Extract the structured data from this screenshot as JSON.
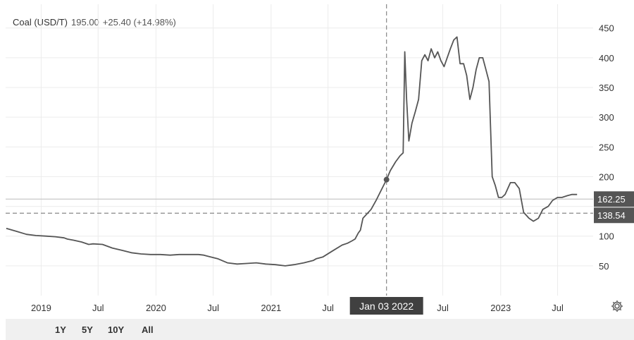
{
  "legend": {
    "name": "Coal (USD/T)",
    "price": "195.00",
    "change": "+25.40 (+14.98%)"
  },
  "range_buttons": [
    "1Y",
    "5Y",
    "10Y",
    "All"
  ],
  "icons": {
    "settings": "gear-icon"
  },
  "colors": {
    "line": "#555555",
    "price_tag": "#555555",
    "crosshair_label": "#404040"
  },
  "chart_data": {
    "type": "line",
    "title": "Coal (USD/T)",
    "ylim": [
      0,
      490
    ],
    "y_ticks": [
      50,
      100,
      150,
      200,
      250,
      300,
      350,
      400,
      450
    ],
    "y_tick_labels": [
      "50",
      "100",
      "",
      "200",
      "250",
      "300",
      "350",
      "400",
      "450"
    ],
    "x_ticks": [
      {
        "date": "2019-01-01",
        "label": "2019"
      },
      {
        "date": "2019-07-01",
        "label": "Jul"
      },
      {
        "date": "2020-01-01",
        "label": "2020"
      },
      {
        "date": "2020-07-01",
        "label": "Jul"
      },
      {
        "date": "2021-01-01",
        "label": "2021"
      },
      {
        "date": "2021-07-01",
        "label": "Jul"
      },
      {
        "date": "2022-07-01",
        "label": "Jul"
      },
      {
        "date": "2023-01-01",
        "label": "2023"
      },
      {
        "date": "2023-07-01",
        "label": "Jul"
      }
    ],
    "grid": true,
    "price_lines": [
      {
        "value": 162.25,
        "label": "162.25",
        "style": "solid"
      },
      {
        "value": 138.54,
        "label": "138.54",
        "style": "dashed"
      }
    ],
    "crosshair": {
      "date": "2022-01-03",
      "value": 195.0,
      "label": "Jan 03 2022"
    },
    "series": [
      {
        "x": [
          "2018-09-12",
          "2018-10-15",
          "2018-11-15",
          "2018-12-15",
          "2019-01-15",
          "2019-02-15",
          "2019-03-15",
          "2019-03-25",
          "2019-04-15",
          "2019-05-10",
          "2019-06-01",
          "2019-06-15",
          "2019-07-15",
          "2019-08-15",
          "2019-09-15",
          "2019-10-15",
          "2019-11-15",
          "2019-12-15",
          "2020-01-15",
          "2020-02-15",
          "2020-03-15",
          "2020-04-15",
          "2020-05-15",
          "2020-06-01",
          "2020-06-15",
          "2020-07-15",
          "2020-08-15",
          "2020-09-15",
          "2020-10-15",
          "2020-11-15",
          "2020-12-15",
          "2021-01-15",
          "2021-02-15",
          "2021-03-15",
          "2021-04-15",
          "2021-05-15",
          "2021-05-25",
          "2021-06-15",
          "2021-07-15",
          "2021-08-15",
          "2021-09-01",
          "2021-09-15",
          "2021-09-25",
          "2021-10-05",
          "2021-10-12",
          "2021-10-20",
          "2021-11-15",
          "2021-12-01",
          "2021-12-15",
          "2022-01-03",
          "2022-01-15",
          "2022-02-01",
          "2022-02-15",
          "2022-02-25",
          "2022-03-02",
          "2022-03-08",
          "2022-03-15",
          "2022-03-25",
          "2022-04-05",
          "2022-04-15",
          "2022-04-25",
          "2022-05-05",
          "2022-05-15",
          "2022-05-25",
          "2022-06-05",
          "2022-06-15",
          "2022-06-25",
          "2022-07-05",
          "2022-07-15",
          "2022-07-25",
          "2022-08-05",
          "2022-08-15",
          "2022-08-25",
          "2022-09-05",
          "2022-09-15",
          "2022-09-25",
          "2022-10-05",
          "2022-10-15",
          "2022-10-25",
          "2022-11-05",
          "2022-11-15",
          "2022-11-25",
          "2022-12-05",
          "2022-12-15",
          "2022-12-25",
          "2023-01-05",
          "2023-01-15",
          "2023-02-01",
          "2023-02-15",
          "2023-03-01",
          "2023-03-15",
          "2023-04-01",
          "2023-04-15",
          "2023-05-01",
          "2023-05-15",
          "2023-06-01",
          "2023-06-15",
          "2023-07-01",
          "2023-07-15",
          "2023-08-01",
          "2023-08-15",
          "2023-09-01"
        ],
        "values": [
          113,
          108,
          103,
          101,
          100,
          99,
          97,
          95,
          93,
          90,
          86,
          87,
          86,
          80,
          76,
          72,
          70,
          69,
          69,
          68,
          69,
          69,
          69,
          68,
          66,
          62,
          55,
          53,
          54,
          55,
          53,
          52,
          50,
          52,
          55,
          59,
          62,
          65,
          75,
          85,
          88,
          92,
          95,
          105,
          110,
          130,
          145,
          160,
          175,
          195,
          210,
          225,
          235,
          240,
          410,
          330,
          260,
          290,
          310,
          330,
          395,
          405,
          395,
          415,
          400,
          410,
          395,
          385,
          400,
          415,
          430,
          435,
          390,
          390,
          370,
          330,
          350,
          380,
          400,
          400,
          380,
          360,
          200,
          185,
          165,
          165,
          170,
          190,
          190,
          180,
          140,
          130,
          125,
          130,
          145,
          150,
          160,
          165,
          165,
          168,
          170,
          170
        ]
      }
    ]
  }
}
